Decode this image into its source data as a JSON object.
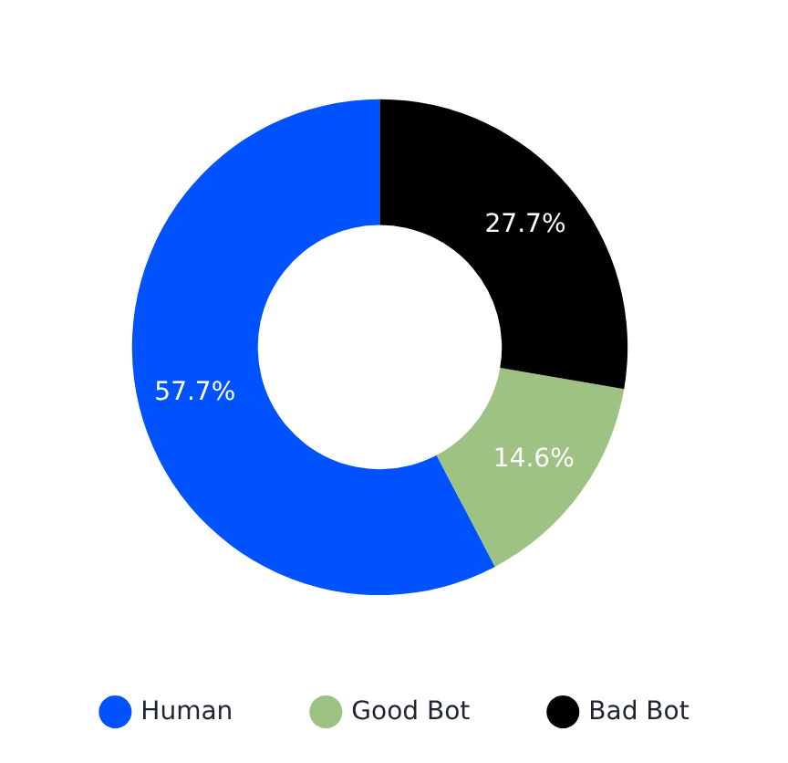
{
  "chart_data": {
    "type": "donut",
    "categories": [
      "Human",
      "Good Bot",
      "Bad Bot"
    ],
    "values": [
      57.7,
      14.6,
      27.7
    ],
    "colors": [
      "#0052ff",
      "#9dc284",
      "#000000"
    ],
    "value_labels": [
      "57.7%",
      "14.6%",
      "27.7%"
    ],
    "legend": "bottom"
  }
}
